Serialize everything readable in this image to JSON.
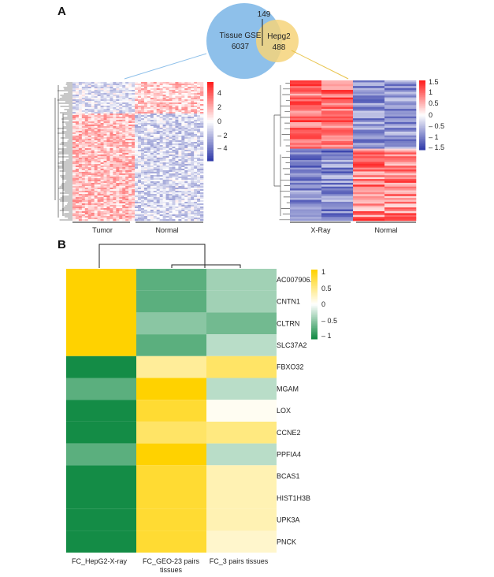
{
  "panelA": {
    "label": "A",
    "venn": {
      "left": {
        "name": "Tissue GSE",
        "count": "6037",
        "color": "#8ec0ea"
      },
      "right": {
        "name": "Hepg2",
        "count": "488",
        "color": "#f6d37a"
      },
      "overlap": "149"
    },
    "heatmap_left": {
      "groups": [
        "Tumor",
        "Normal"
      ],
      "legend_ticks": [
        "4",
        "2",
        "0",
        "– 2",
        "– 4"
      ]
    },
    "heatmap_right": {
      "groups": [
        "X-Ray",
        "Normal"
      ],
      "legend_ticks": [
        "1.5",
        "1",
        "0.5",
        "0",
        "– 0.5",
        "– 1",
        "– 1.5"
      ]
    }
  },
  "panelB": {
    "label": "B",
    "legend_ticks": [
      "1",
      "0.5",
      "0",
      "– 0.5",
      "– 1"
    ],
    "highlight_color": "#e0312f",
    "highlight_gene": "CLTRN",
    "chart_data": {
      "type": "heatmap",
      "columns": [
        "FC_HepG2-X-ray",
        "FC_GEO-23 pairs tissues",
        "FC_3 pairs tissues"
      ],
      "rows": [
        "AC007906.2",
        "CNTN1",
        "CLTRN",
        "SLC37A2",
        "FBXO32",
        "MGAM",
        "LOX",
        "CCNE2",
        "PPFIA4",
        "BCAS1",
        "HIST1H3B",
        "UPK3A",
        "PNCK"
      ],
      "values": [
        [
          1.0,
          -0.7,
          -0.4
        ],
        [
          1.0,
          -0.7,
          -0.4
        ],
        [
          1.0,
          -0.5,
          -0.6
        ],
        [
          1.0,
          -0.7,
          -0.3
        ],
        [
          -1.0,
          0.4,
          0.6
        ],
        [
          -0.7,
          1.0,
          -0.3
        ],
        [
          -1.0,
          0.8,
          0.05
        ],
        [
          -1.0,
          0.6,
          0.5
        ],
        [
          -0.7,
          1.0,
          -0.3
        ],
        [
          -1.0,
          0.8,
          0.3
        ],
        [
          -1.0,
          0.8,
          0.3
        ],
        [
          -1.0,
          0.8,
          0.3
        ],
        [
          -1.0,
          0.8,
          0.2
        ]
      ],
      "merged_rows": [
        0,
        3
      ],
      "range": [
        -1,
        1
      ]
    }
  }
}
